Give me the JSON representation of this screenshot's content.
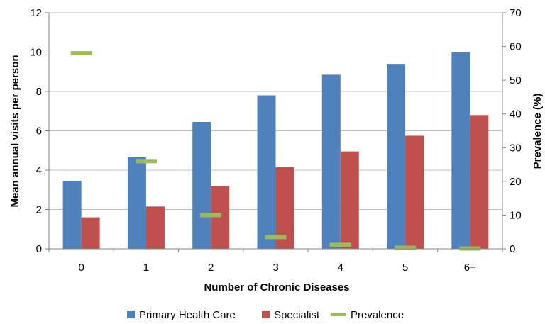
{
  "chart_data": {
    "type": "bar",
    "categories": [
      "0",
      "1",
      "2",
      "3",
      "4",
      "5",
      "6+"
    ],
    "series": [
      {
        "name": "Primary Health Care",
        "values": [
          3.45,
          4.65,
          6.45,
          7.8,
          8.85,
          9.4,
          10.0
        ],
        "color": "#4f81bd",
        "axis": "left"
      },
      {
        "name": "Specialist",
        "values": [
          1.6,
          2.15,
          3.2,
          4.15,
          4.95,
          5.75,
          6.8
        ],
        "color": "#c0504d",
        "axis": "left"
      },
      {
        "name": "Prevalence",
        "values": [
          58.0,
          26.0,
          10.0,
          3.5,
          1.2,
          0.3,
          0.1
        ],
        "color": "#9bbb59",
        "axis": "right",
        "marker": "dash"
      }
    ],
    "xlabel": "Number of Chronic Diseases",
    "ylabel": "Mean annual visits per person",
    "y2label": "Prevalence (%)",
    "ylim": [
      0,
      12
    ],
    "yticks": [
      "0",
      "2",
      "4",
      "6",
      "8",
      "10",
      "12"
    ],
    "y2lim": [
      0,
      70
    ],
    "y2ticks": [
      "0",
      "10",
      "20",
      "30",
      "40",
      "50",
      "60",
      "70"
    ],
    "grid": true,
    "legend_position": "bottom"
  }
}
